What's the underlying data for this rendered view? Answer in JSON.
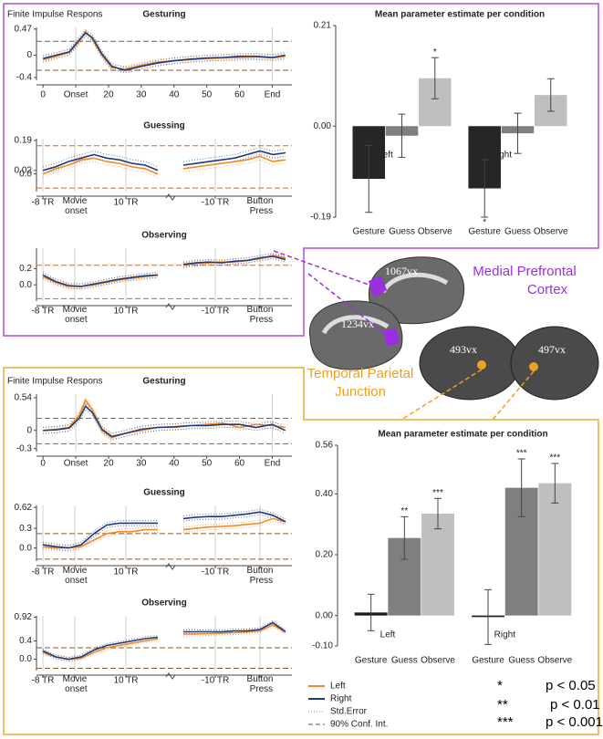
{
  "chart_data": [
    {
      "type": "line",
      "title": "Gesturing",
      "y_label": "Finite Impulse Respons",
      "x": [
        0,
        4,
        8,
        11,
        13,
        15,
        18,
        21,
        25,
        30,
        35,
        40,
        45,
        50,
        55,
        60,
        65,
        70,
        74
      ],
      "xlim": [
        -2,
        76
      ],
      "xticks": [
        0,
        {
          "value": 10,
          "label": "Onset"
        },
        20,
        30,
        40,
        50,
        60,
        {
          "value": 70,
          "label": "End"
        }
      ],
      "ylim": [
        -0.45,
        0.5
      ],
      "yticks": [
        0.47,
        0,
        -0.4
      ],
      "conf": [
        0.25,
        -0.27
      ],
      "conf_color": "#8b5a2b",
      "series": [
        {
          "name": "Left",
          "color": "#f08a24",
          "error": 0.05,
          "values": [
            -0.08,
            -0.02,
            0.05,
            0.25,
            0.42,
            0.3,
            0.0,
            -0.22,
            -0.25,
            -0.18,
            -0.12,
            -0.1,
            -0.08,
            -0.06,
            -0.05,
            -0.04,
            -0.03,
            -0.05,
            -0.02
          ]
        },
        {
          "name": "Right",
          "color": "#1f3a7a",
          "error": 0.05,
          "values": [
            -0.06,
            0.0,
            0.06,
            0.27,
            0.4,
            0.32,
            0.02,
            -0.2,
            -0.27,
            -0.2,
            -0.14,
            -0.1,
            -0.07,
            -0.05,
            -0.04,
            -0.02,
            -0.02,
            -0.04,
            0.0
          ]
        }
      ]
    },
    {
      "type": "line",
      "title": "Guessing",
      "x": [
        0,
        2,
        4,
        6,
        8,
        10,
        12,
        14,
        16,
        18,
        20,
        22,
        24,
        26,
        28,
        30,
        32,
        34,
        36,
        38
      ],
      "xlim": [
        -1,
        39
      ],
      "xticks": [
        {
          "value": 0,
          "label": "-8 TR"
        },
        {
          "value": 5,
          "label": "Movie onset"
        },
        {
          "value": 13,
          "label": "10 TR"
        },
        {
          "value": 27,
          "label": "-10 TR"
        },
        {
          "value": 34,
          "label": "Button Press"
        }
      ],
      "ylim": [
        -0.1,
        0.2
      ],
      "yticks": [
        0.19,
        0.02,
        {
          "value": 0,
          "label": "0.0"
        }
      ],
      "conf": [
        0.16,
        -0.08
      ],
      "conf_color": "#c07030",
      "series": [
        {
          "name": "Left",
          "color": "#f08a24",
          "error": 0.02,
          "values": [
            0.0,
            0.03,
            0.05,
            0.08,
            0.09,
            0.07,
            0.06,
            0.04,
            0.03,
            0.0,
            null,
            0.03,
            0.04,
            0.05,
            0.06,
            0.07,
            0.08,
            0.1,
            0.07,
            0.08
          ]
        },
        {
          "name": "Right",
          "color": "#1f3a7a",
          "error": 0.02,
          "values": [
            0.02,
            0.04,
            0.07,
            0.09,
            0.11,
            0.09,
            0.08,
            0.06,
            0.05,
            0.02,
            null,
            0.05,
            0.06,
            0.07,
            0.08,
            0.09,
            0.11,
            0.13,
            0.11,
            0.12
          ]
        }
      ]
    },
    {
      "type": "line",
      "title": "Observing",
      "x": [
        0,
        2,
        4,
        6,
        8,
        10,
        12,
        14,
        16,
        18,
        20,
        22,
        24,
        26,
        28,
        30,
        32,
        34,
        36,
        38
      ],
      "xlim": [
        -1,
        39
      ],
      "xticks": [
        {
          "value": 0,
          "label": "-8 TR"
        },
        {
          "value": 5,
          "label": "Movie onset"
        },
        {
          "value": 13,
          "label": "10 TR"
        },
        {
          "value": 27,
          "label": "-10 TR"
        },
        {
          "value": 34,
          "label": "Button Press"
        }
      ],
      "ylim": [
        -0.2,
        0.45
      ],
      "yticks": [
        0.2,
        {
          "value": 0,
          "label": "0.0"
        }
      ],
      "conf": [
        0.24,
        -0.17
      ],
      "conf_color": "#c07030",
      "series": [
        {
          "name": "Left",
          "color": "#f08a24",
          "error": 0.03,
          "values": [
            0.1,
            0.03,
            -0.02,
            -0.02,
            0.0,
            0.03,
            0.06,
            0.08,
            0.1,
            0.12,
            null,
            0.24,
            0.26,
            0.27,
            0.28,
            0.28,
            0.3,
            0.32,
            0.36,
            0.33
          ]
        },
        {
          "name": "Right",
          "color": "#1f3a7a",
          "error": 0.03,
          "values": [
            0.12,
            0.04,
            -0.01,
            -0.02,
            0.01,
            0.04,
            0.07,
            0.09,
            0.11,
            0.12,
            null,
            0.25,
            0.27,
            0.28,
            0.27,
            0.29,
            0.3,
            0.33,
            0.35,
            0.31
          ]
        }
      ]
    },
    {
      "type": "bar",
      "title": "Mean parameter estimate per condition",
      "categories": [
        "Gesture",
        "Guess",
        "Observe",
        "Gesture",
        "Guess",
        "Observe"
      ],
      "groups": [
        "Left",
        "Right"
      ],
      "values": [
        -0.11,
        -0.02,
        0.1,
        -0.13,
        -0.015,
        0.065
      ],
      "errors": [
        0.07,
        0.045,
        0.043,
        0.06,
        0.042,
        0.034
      ],
      "significance": [
        null,
        null,
        "*",
        "*",
        null,
        null
      ],
      "colors": [
        "#262626",
        "#7f7f7f",
        "#bfbfbf",
        "#262626",
        "#7f7f7f",
        "#bfbfbf"
      ],
      "ylim": [
        -0.19,
        0.21
      ],
      "yticks": [
        -0.19,
        {
          "value": 0,
          "label": "0.00"
        },
        0.21
      ]
    },
    {
      "type": "line",
      "title": "Gesturing",
      "y_label": "Finite Impulse Respons",
      "x": [
        0,
        4,
        8,
        11,
        13,
        15,
        18,
        21,
        25,
        30,
        35,
        40,
        45,
        50,
        55,
        60,
        65,
        70,
        74
      ],
      "xlim": [
        -2,
        76
      ],
      "xticks": [
        0,
        {
          "value": 10,
          "label": "Onset"
        },
        20,
        30,
        40,
        50,
        60,
        {
          "value": 70,
          "label": "End"
        }
      ],
      "ylim": [
        -0.35,
        0.6
      ],
      "yticks": [
        0.54,
        0,
        -0.3
      ],
      "conf": [
        0.2,
        -0.22
      ],
      "conf_color": "#6e6e6e",
      "series": [
        {
          "name": "Left",
          "color": "#f08a24",
          "error": 0.05,
          "values": [
            0.0,
            0.02,
            0.05,
            0.25,
            0.5,
            0.35,
            0.0,
            -0.12,
            -0.05,
            0.0,
            0.05,
            0.05,
            0.08,
            0.1,
            0.12,
            0.05,
            0.1,
            0.08,
            0.05
          ]
        },
        {
          "name": "Right",
          "color": "#1f3a7a",
          "error": 0.05,
          "values": [
            0.0,
            0.01,
            0.04,
            0.2,
            0.4,
            0.3,
            0.02,
            -0.1,
            -0.05,
            0.02,
            0.05,
            0.06,
            0.08,
            0.08,
            0.1,
            0.1,
            0.05,
            0.1,
            0.0
          ]
        }
      ]
    },
    {
      "type": "line",
      "title": "Guessing",
      "x": [
        0,
        2,
        4,
        6,
        8,
        10,
        12,
        14,
        16,
        18,
        20,
        22,
        24,
        26,
        28,
        30,
        32,
        34,
        36,
        38
      ],
      "xlim": [
        -1,
        39
      ],
      "xticks": [
        {
          "value": 0,
          "label": "-8 TR"
        },
        {
          "value": 5,
          "label": "Movie onset"
        },
        {
          "value": 13,
          "label": "10 TR"
        },
        {
          "value": 27,
          "label": "-10 TR"
        },
        {
          "value": 34,
          "label": "Button Press"
        }
      ],
      "ylim": [
        -0.2,
        0.65
      ],
      "yticks": [
        0.62,
        0.3,
        {
          "value": 0,
          "label": "0.0"
        }
      ],
      "conf": [
        0.22,
        -0.17
      ],
      "conf_color": "#8b5a2b",
      "series": [
        {
          "name": "Left",
          "color": "#f08a24",
          "error": 0.04,
          "values": [
            0.02,
            0.0,
            0.0,
            0.02,
            0.12,
            0.22,
            0.25,
            0.25,
            0.28,
            0.28,
            null,
            0.28,
            0.3,
            0.32,
            0.33,
            0.34,
            0.36,
            0.38,
            0.45,
            0.4
          ]
        },
        {
          "name": "Right",
          "color": "#1f3a7a",
          "error": 0.04,
          "values": [
            0.05,
            0.02,
            0.0,
            0.05,
            0.22,
            0.35,
            0.38,
            0.38,
            0.38,
            0.38,
            null,
            0.45,
            0.47,
            0.48,
            0.48,
            0.5,
            0.52,
            0.55,
            0.5,
            0.4
          ]
        }
      ]
    },
    {
      "type": "line",
      "title": "Observing",
      "x": [
        0,
        2,
        4,
        6,
        8,
        10,
        12,
        14,
        16,
        18,
        20,
        22,
        24,
        26,
        28,
        30,
        32,
        34,
        36,
        38
      ],
      "xlim": [
        -1,
        39
      ],
      "xticks": [
        {
          "value": 0,
          "label": "-8 TR"
        },
        {
          "value": 5,
          "label": "Movie onset"
        },
        {
          "value": 13,
          "label": "10 TR"
        },
        {
          "value": 27,
          "label": "-10 TR"
        },
        {
          "value": 34,
          "label": "Button Press"
        }
      ],
      "ylim": [
        -0.25,
        0.95
      ],
      "yticks": [
        0.92,
        0.4,
        {
          "value": 0,
          "label": "0.0"
        }
      ],
      "conf": [
        0.25,
        -0.2
      ],
      "conf_color": "#8b5a2b",
      "series": [
        {
          "name": "Left",
          "color": "#f08a24",
          "error": 0.04,
          "values": [
            0.15,
            0.05,
            0.0,
            0.02,
            0.15,
            0.25,
            0.3,
            0.35,
            0.4,
            0.45,
            null,
            0.55,
            0.55,
            0.56,
            0.57,
            0.58,
            0.6,
            0.62,
            0.75,
            0.6
          ]
        },
        {
          "name": "Right",
          "color": "#1f3a7a",
          "error": 0.04,
          "values": [
            0.18,
            0.05,
            0.0,
            0.05,
            0.2,
            0.3,
            0.35,
            0.4,
            0.45,
            0.48,
            null,
            0.6,
            0.6,
            0.6,
            0.6,
            0.62,
            0.62,
            0.65,
            0.8,
            0.6
          ]
        }
      ]
    },
    {
      "type": "bar",
      "title": "Mean parameter estimate per condition",
      "categories": [
        "Gesture",
        "Guess",
        "Observe",
        "Gesture",
        "Guess",
        "Observe"
      ],
      "groups": [
        "Left",
        "Right"
      ],
      "values": [
        0.01,
        0.255,
        0.335,
        -0.005,
        0.42,
        0.435
      ],
      "errors": [
        0.06,
        0.07,
        0.05,
        0.09,
        0.095,
        0.065
      ],
      "significance": [
        null,
        "**",
        "***",
        null,
        "***",
        "***"
      ],
      "colors": [
        "#1a1a1a",
        "#7f7f7f",
        "#bfbfbf",
        "#1a1a1a",
        "#7f7f7f",
        "#bfbfbf"
      ],
      "ylim": [
        -0.1,
        0.56
      ],
      "yticks": [
        {
          "value": -0.1,
          "label": "-0.10"
        },
        {
          "value": 0,
          "label": "0.00"
        },
        {
          "value": 0.2,
          "label": "0.20"
        },
        {
          "value": 0.4,
          "label": "0.40"
        },
        0.56
      ]
    }
  ],
  "regions": {
    "mpfc": {
      "lines": [
        "Medial Prefrontal",
        "Cortex"
      ],
      "voxels": [
        "1067vx",
        "1234vx"
      ]
    },
    "tpj": {
      "lines": [
        "Temporal Parietal",
        "Junction"
      ],
      "voxels": [
        "493vx",
        "497vx"
      ]
    }
  },
  "legend": {
    "std_error": "Std.Error",
    "conf_int": "90% Conf. Int."
  },
  "significance_key": [
    {
      "stars": "*",
      "label": "p < 0.05"
    },
    {
      "stars": "**",
      "label": "p < 0.01"
    },
    {
      "stars": "***",
      "label": "p < 0.001"
    }
  ]
}
